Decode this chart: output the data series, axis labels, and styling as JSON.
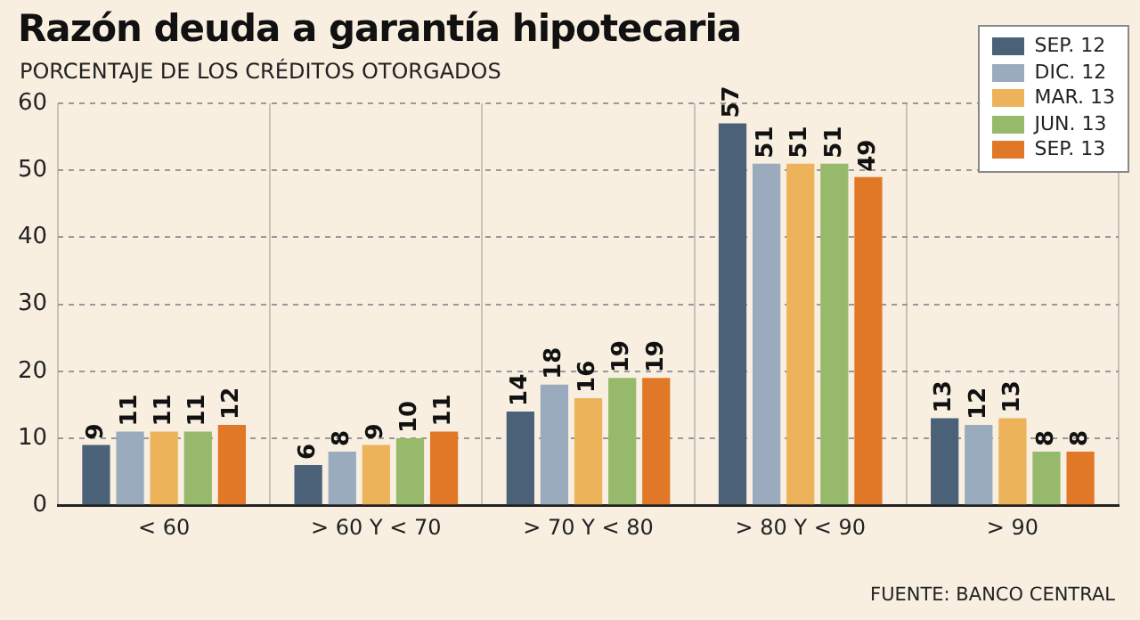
{
  "chart_data": {
    "type": "bar",
    "title": "Razón deuda a garantía hipotecaria",
    "subtitle": "PORCENTAJE DE LOS CRÉDITOS OTORGADOS",
    "annotations": [
      "FUENTE: BANCO CENTRAL"
    ],
    "categories": [
      "< 60",
      "> 60 Y < 70",
      "> 70 Y < 80",
      "> 80 Y < 90",
      "> 90"
    ],
    "series": [
      {
        "name": "SEP. 12",
        "color": "#4a6178",
        "values": [
          9,
          6,
          14,
          57,
          13
        ]
      },
      {
        "name": "DIC. 12",
        "color": "#9aabbd",
        "values": [
          11,
          8,
          18,
          51,
          12
        ]
      },
      {
        "name": "MAR. 13",
        "color": "#edb35a",
        "values": [
          11,
          9,
          16,
          51,
          13
        ]
      },
      {
        "name": "JUN. 13",
        "color": "#97b96c",
        "values": [
          11,
          10,
          19,
          51,
          8
        ]
      },
      {
        "name": "SEP. 13",
        "color": "#e07827",
        "values": [
          12,
          11,
          19,
          49,
          8
        ]
      }
    ],
    "ylim": [
      0,
      60
    ],
    "yticks": [
      0,
      10,
      20,
      30,
      40,
      50,
      60
    ],
    "grid": true,
    "legend": "top right",
    "data_labels": true
  }
}
